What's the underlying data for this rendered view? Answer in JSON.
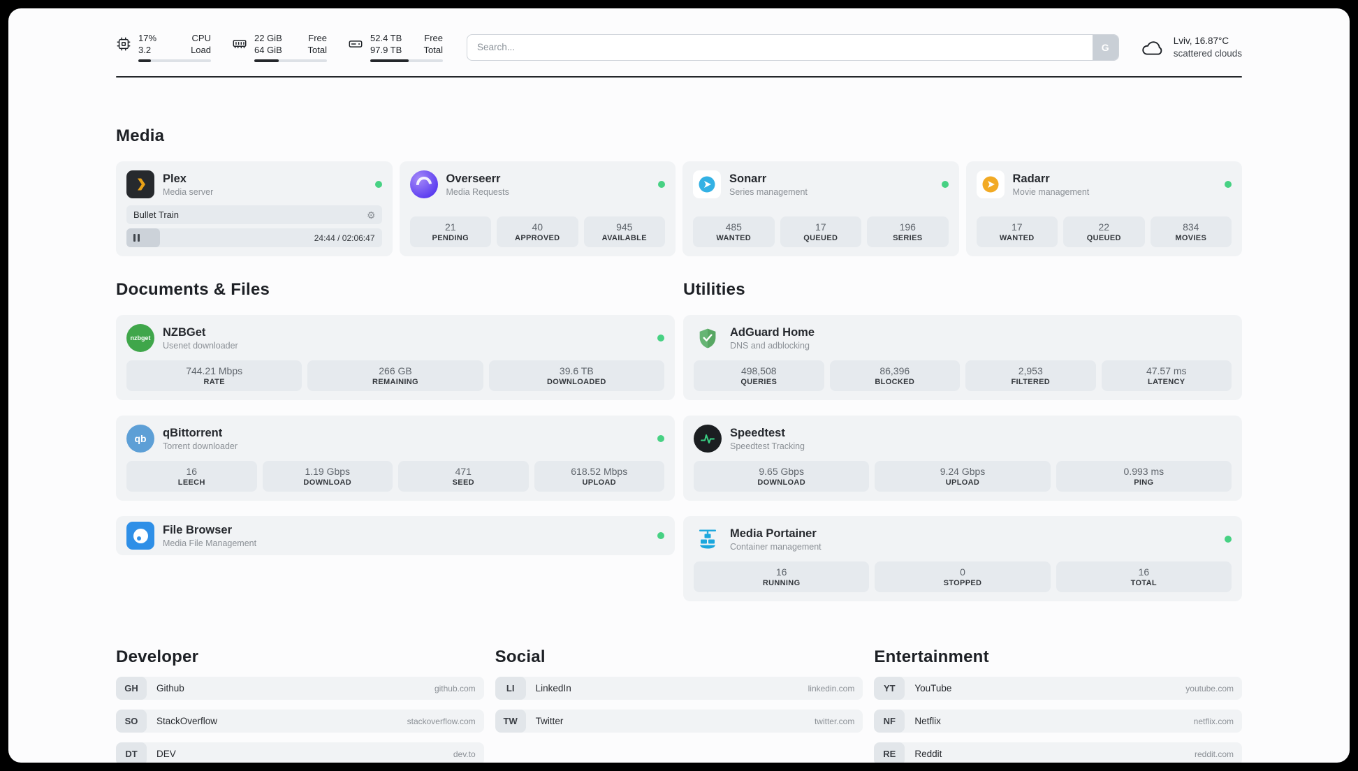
{
  "colors": {
    "status_online": "#47d183",
    "plex_accent": "#e8a117",
    "sonarr_accent": "#33b1e4",
    "radarr_accent": "#f2aa24",
    "adguard_accent": "#66b574",
    "speedtest_accent": "#3ad184",
    "portainer_accent": "#1ba7dd",
    "card_bg": "#f1f3f5",
    "stat_bg": "#e6eaee"
  },
  "topbar": {
    "cpu": {
      "value1": "17%",
      "value2": "3.2",
      "label1": "CPU",
      "label2": "Load",
      "progress": 17
    },
    "ram": {
      "value1": "22 GiB",
      "value2": "64 GiB",
      "label1": "Free",
      "label2": "Total",
      "progress": 34
    },
    "disk": {
      "value1": "52.4 TB",
      "value2": "97.9 TB",
      "label1": "Free",
      "label2": "Total",
      "progress": 53
    },
    "search": {
      "placeholder": "Search...",
      "button_label": "G"
    },
    "weather": {
      "location": "Lviv, 16.87°C",
      "condition": "scattered clouds"
    }
  },
  "icons": {
    "nzbget_label": "nzbget",
    "qbittorrent_label": "qb"
  },
  "media": {
    "title": "Media",
    "plex": {
      "name": "Plex",
      "description": "Media server",
      "now_playing": "Bullet Train",
      "time": "24:44 / 02:06:47"
    },
    "overseerr": {
      "name": "Overseerr",
      "description": "Media Requests",
      "stats": [
        {
          "value": "21",
          "label": "PENDING"
        },
        {
          "value": "40",
          "label": "APPROVED"
        },
        {
          "value": "945",
          "label": "AVAILABLE"
        }
      ]
    },
    "sonarr": {
      "name": "Sonarr",
      "description": "Series management",
      "stats": [
        {
          "value": "485",
          "label": "WANTED"
        },
        {
          "value": "17",
          "label": "QUEUED"
        },
        {
          "value": "196",
          "label": "SERIES"
        }
      ]
    },
    "radarr": {
      "name": "Radarr",
      "description": "Movie management",
      "stats": [
        {
          "value": "17",
          "label": "WANTED"
        },
        {
          "value": "22",
          "label": "QUEUED"
        },
        {
          "value": "834",
          "label": "MOVIES"
        }
      ]
    }
  },
  "documents": {
    "title": "Documents & Files",
    "nzbget": {
      "name": "NZBGet",
      "description": "Usenet downloader",
      "stats": [
        {
          "value": "744.21 Mbps",
          "label": "RATE"
        },
        {
          "value": "266 GB",
          "label": "REMAINING"
        },
        {
          "value": "39.6 TB",
          "label": "DOWNLOADED"
        }
      ]
    },
    "qbittorrent": {
      "name": "qBittorrent",
      "description": "Torrent downloader",
      "stats": [
        {
          "value": "16",
          "label": "LEECH"
        },
        {
          "value": "1.19 Gbps",
          "label": "DOWNLOAD"
        },
        {
          "value": "471",
          "label": "SEED"
        },
        {
          "value": "618.52 Mbps",
          "label": "UPLOAD"
        }
      ]
    },
    "filebrowser": {
      "name": "File Browser",
      "description": "Media File Management"
    }
  },
  "utilities": {
    "title": "Utilities",
    "adguard": {
      "name": "AdGuard Home",
      "description": "DNS and adblocking",
      "stats": [
        {
          "value": "498,508",
          "label": "QUERIES"
        },
        {
          "value": "86,396",
          "label": "BLOCKED"
        },
        {
          "value": "2,953",
          "label": "FILTERED"
        },
        {
          "value": "47.57 ms",
          "label": "LATENCY"
        }
      ]
    },
    "speedtest": {
      "name": "Speedtest",
      "description": "Speedtest Tracking",
      "stats": [
        {
          "value": "9.65 Gbps",
          "label": "DOWNLOAD"
        },
        {
          "value": "9.24 Gbps",
          "label": "UPLOAD"
        },
        {
          "value": "0.993 ms",
          "label": "PING"
        }
      ]
    },
    "portainer": {
      "name": "Media Portainer",
      "description": "Container management",
      "stats": [
        {
          "value": "16",
          "label": "RUNNING"
        },
        {
          "value": "0",
          "label": "STOPPED"
        },
        {
          "value": "16",
          "label": "TOTAL"
        }
      ]
    }
  },
  "bookmarks": {
    "developer": {
      "title": "Developer",
      "items": [
        {
          "abbr": "GH",
          "name": "Github",
          "url": "github.com"
        },
        {
          "abbr": "SO",
          "name": "StackOverflow",
          "url": "stackoverflow.com"
        },
        {
          "abbr": "DT",
          "name": "DEV",
          "url": "dev.to"
        }
      ]
    },
    "social": {
      "title": "Social",
      "items": [
        {
          "abbr": "LI",
          "name": "LinkedIn",
          "url": "linkedin.com"
        },
        {
          "abbr": "TW",
          "name": "Twitter",
          "url": "twitter.com"
        }
      ]
    },
    "entertainment": {
      "title": "Entertainment",
      "items": [
        {
          "abbr": "YT",
          "name": "YouTube",
          "url": "youtube.com"
        },
        {
          "abbr": "NF",
          "name": "Netflix",
          "url": "netflix.com"
        },
        {
          "abbr": "RE",
          "name": "Reddit",
          "url": "reddit.com"
        }
      ]
    }
  }
}
